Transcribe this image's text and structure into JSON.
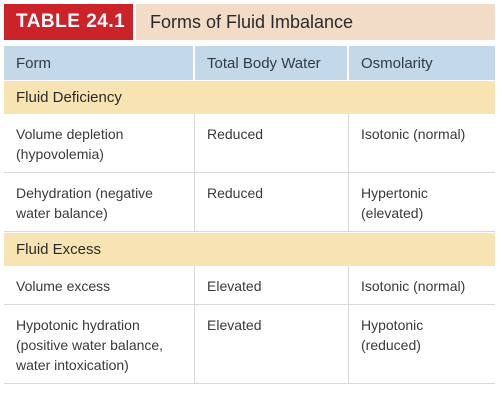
{
  "title": {
    "number": "TABLE 24.1",
    "name": "Forms of Fluid Imbalance"
  },
  "columns": [
    "Form",
    "Total Body Water",
    "Osmolarity"
  ],
  "sections": [
    {
      "label": "Fluid Deficiency",
      "rows": [
        [
          "Volume depletion (hypovolemia)",
          "Reduced",
          "Isotonic (normal)"
        ],
        [
          "Dehydration (negative water balance)",
          "Reduced",
          "Hypertonic (elevated)"
        ]
      ]
    },
    {
      "label": "Fluid Excess",
      "rows": [
        [
          "Volume excess",
          "Elevated",
          "Isotonic (normal)"
        ],
        [
          "Hypotonic hydration (positive water balance, water intoxication)",
          "Elevated",
          "Hypotonic (reduced)"
        ]
      ]
    }
  ],
  "colors": {
    "table_number_bg": "#cc2229",
    "title_bg": "#f2dcc7",
    "header_bg": "#c3d8e9",
    "section_bg": "#f8e4b3"
  }
}
